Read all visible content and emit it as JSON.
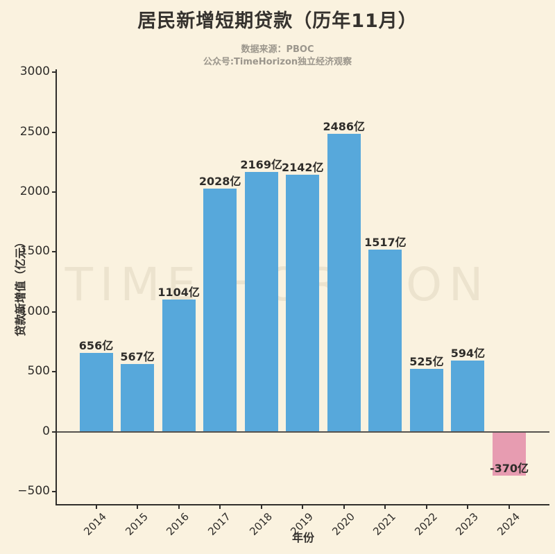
{
  "page": {
    "background": "#FAF2DF"
  },
  "header": {
    "title": "居民新增短期贷款（历年11月）",
    "subtitle_line1": "数据来源：PBOC",
    "subtitle_line2": "公众号:TimeHorizon独立经济观察"
  },
  "watermark": "TIME HORIZON",
  "chart_data": {
    "type": "bar",
    "title": "居民新增短期贷款（历年11月）",
    "categories": [
      "2014",
      "2015",
      "2016",
      "2017",
      "2018",
      "2019",
      "2020",
      "2021",
      "2022",
      "2023",
      "2024"
    ],
    "values": [
      656,
      567,
      1104,
      2028,
      2169,
      2142,
      2486,
      1517,
      525,
      594,
      -370
    ],
    "value_labels": [
      "656亿",
      "567亿",
      "1104亿",
      "2028亿",
      "2169亿",
      "2142亿",
      "2486亿",
      "1517亿",
      "525亿",
      "594亿",
      "-370亿"
    ],
    "xlabel": "年份",
    "ylabel": "贷款新增值（亿元）",
    "ylim": [
      -500,
      3000
    ],
    "yticks": [
      3000,
      2500,
      2000,
      1500,
      1000,
      500,
      0,
      -500
    ],
    "grid": false,
    "legend_position": "none",
    "bar_color_positive": "#57A8DB",
    "bar_color_negative": "#E79CB1",
    "axis_color": "#2F2D2A",
    "zero_line_color": "#55524E"
  }
}
